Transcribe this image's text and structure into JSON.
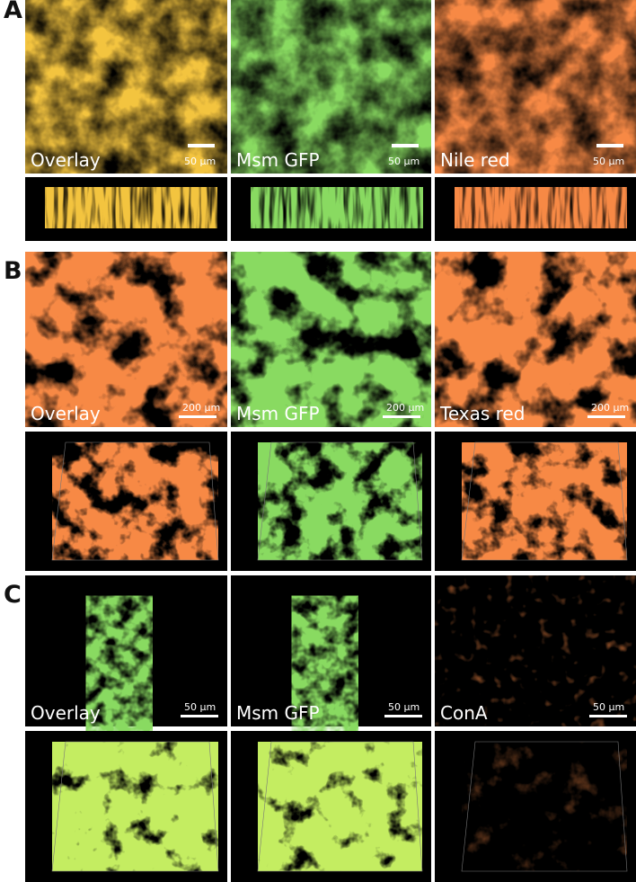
{
  "panels": [
    {
      "label": "A",
      "images": [
        {
          "caption": "Overlay",
          "scale_bar": "50 µm"
        },
        {
          "caption": "Msm GFP",
          "scale_bar": "50 µm"
        },
        {
          "caption": "Nile red",
          "scale_bar": "50 µm"
        }
      ]
    },
    {
      "label": "B",
      "images": [
        {
          "caption": "Overlay",
          "scale_bar": "200 µm"
        },
        {
          "caption": "Msm GFP",
          "scale_bar": "200 µm"
        },
        {
          "caption": "Texas red",
          "scale_bar": "200 µm"
        }
      ]
    },
    {
      "label": "C",
      "images": [
        {
          "caption": "Overlay",
          "scale_bar": "50 µm"
        },
        {
          "caption": "Msm GFP",
          "scale_bar": "50 µm"
        },
        {
          "caption": "ConA",
          "scale_bar": "50 µm"
        }
      ]
    }
  ]
}
